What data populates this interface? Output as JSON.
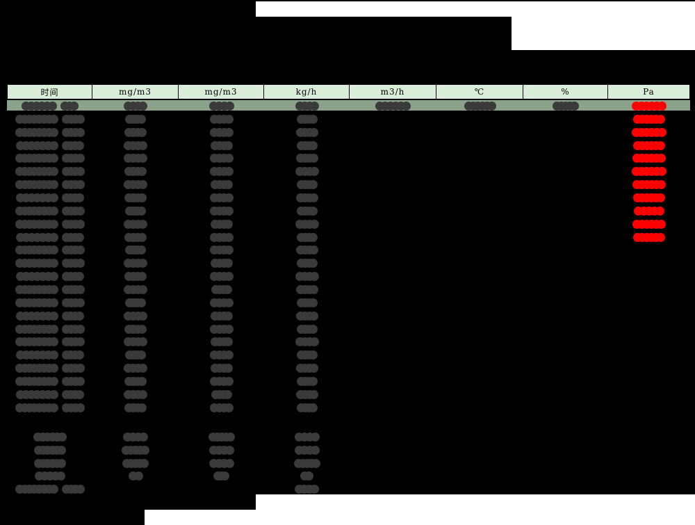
{
  "table": {
    "header": {
      "columns": [
        "时间",
        "mg/m3",
        "mg/m3",
        "kg/h",
        "m3/h",
        "℃",
        "%",
        "Pa"
      ]
    },
    "body_rows": [
      {
        "highlight": true,
        "cells": [
          [
            0,
            82
          ],
          [
            1,
            34
          ],
          [
            2,
            36
          ],
          [
            3,
            34
          ],
          [
            4,
            51
          ],
          [
            5,
            46
          ],
          [
            6,
            38
          ],
          [
            7,
            50,
            1
          ]
        ]
      },
      {
        "cells": [
          [
            0,
            100
          ],
          [
            1,
            30
          ],
          [
            2,
            34
          ],
          [
            3,
            30
          ],
          [
            7,
            46,
            1
          ]
        ]
      },
      {
        "cells": [
          [
            0,
            100
          ],
          [
            1,
            32
          ],
          [
            2,
            34
          ],
          [
            3,
            32
          ],
          [
            7,
            50,
            1
          ]
        ]
      },
      {
        "cells": [
          [
            0,
            98
          ],
          [
            1,
            34
          ],
          [
            2,
            32
          ],
          [
            3,
            30
          ],
          [
            7,
            46,
            1
          ]
        ]
      },
      {
        "cells": [
          [
            0,
            100
          ],
          [
            1,
            34
          ],
          [
            2,
            34
          ],
          [
            3,
            32
          ],
          [
            7,
            48,
            1
          ]
        ]
      },
      {
        "cells": [
          [
            0,
            100
          ],
          [
            1,
            32
          ],
          [
            2,
            34
          ],
          [
            3,
            34
          ],
          [
            7,
            50,
            1
          ]
        ]
      },
      {
        "cells": [
          [
            0,
            100
          ],
          [
            1,
            34
          ],
          [
            2,
            32
          ],
          [
            3,
            30
          ],
          [
            7,
            48,
            1
          ]
        ]
      },
      {
        "cells": [
          [
            0,
            98
          ],
          [
            1,
            32
          ],
          [
            2,
            34
          ],
          [
            3,
            32
          ],
          [
            7,
            46,
            1
          ]
        ]
      },
      {
        "cells": [
          [
            0,
            100
          ],
          [
            1,
            30
          ],
          [
            2,
            34
          ],
          [
            3,
            30
          ],
          [
            7,
            44,
            1
          ]
        ]
      },
      {
        "cells": [
          [
            0,
            100
          ],
          [
            1,
            34
          ],
          [
            2,
            32
          ],
          [
            3,
            34
          ],
          [
            7,
            48,
            1
          ]
        ]
      },
      {
        "cells": [
          [
            0,
            98
          ],
          [
            1,
            32
          ],
          [
            2,
            34
          ],
          [
            3,
            30
          ],
          [
            7,
            46,
            1
          ]
        ]
      },
      {
        "cells": [
          [
            0,
            100
          ],
          [
            1,
            30
          ],
          [
            2,
            34
          ],
          [
            3,
            32
          ]
        ]
      },
      {
        "cells": [
          [
            0,
            100
          ],
          [
            1,
            34
          ],
          [
            2,
            32
          ],
          [
            3,
            30
          ]
        ]
      },
      {
        "cells": [
          [
            0,
            98
          ],
          [
            1,
            32
          ],
          [
            2,
            34
          ],
          [
            3,
            34
          ]
        ]
      },
      {
        "cells": [
          [
            0,
            100
          ],
          [
            1,
            34
          ],
          [
            2,
            30
          ],
          [
            3,
            32
          ]
        ]
      },
      {
        "cells": [
          [
            0,
            100
          ],
          [
            1,
            30
          ],
          [
            2,
            34
          ],
          [
            3,
            30
          ]
        ]
      },
      {
        "cells": [
          [
            0,
            98
          ],
          [
            1,
            34
          ],
          [
            2,
            32
          ],
          [
            3,
            32
          ]
        ]
      },
      {
        "cells": [
          [
            0,
            100
          ],
          [
            1,
            32
          ],
          [
            2,
            34
          ],
          [
            3,
            30
          ]
        ]
      },
      {
        "cells": [
          [
            0,
            100
          ],
          [
            1,
            34
          ],
          [
            2,
            32
          ],
          [
            3,
            34
          ]
        ]
      },
      {
        "cells": [
          [
            0,
            98
          ],
          [
            1,
            30
          ],
          [
            2,
            34
          ],
          [
            3,
            30
          ]
        ]
      },
      {
        "cells": [
          [
            0,
            100
          ],
          [
            1,
            34
          ],
          [
            2,
            32
          ],
          [
            3,
            32
          ]
        ]
      },
      {
        "cells": [
          [
            0,
            100
          ],
          [
            1,
            32
          ],
          [
            2,
            34
          ],
          [
            3,
            30
          ]
        ]
      },
      {
        "cells": [
          [
            0,
            98
          ],
          [
            1,
            34
          ],
          [
            2,
            30
          ],
          [
            3,
            32
          ]
        ]
      },
      {
        "cells": [
          [
            0,
            100
          ],
          [
            1,
            32
          ],
          [
            2,
            34
          ],
          [
            3,
            30
          ]
        ]
      }
    ],
    "summary_rows": [
      {
        "cells": [
          [
            0,
            48
          ],
          [
            1,
            36
          ],
          [
            2,
            38
          ],
          [
            3,
            36
          ]
        ]
      },
      {
        "cells": [
          [
            0,
            46
          ],
          [
            1,
            40
          ],
          [
            2,
            36
          ],
          [
            3,
            36
          ]
        ]
      },
      {
        "cells": [
          [
            0,
            46
          ],
          [
            1,
            38
          ],
          [
            2,
            36
          ],
          [
            3,
            38
          ]
        ]
      },
      {
        "cells": [
          [
            0,
            44
          ],
          [
            1,
            21
          ],
          [
            2,
            23
          ],
          [
            3,
            19
          ]
        ]
      },
      {
        "long_label": true,
        "cells": [
          [
            0,
            100
          ],
          [
            3,
            35
          ]
        ]
      }
    ]
  },
  "colors": {
    "page_background": "#000000",
    "paper": "#ffffff",
    "header_cell_background": "#d9edd9",
    "first_row_background": "#8aa28a",
    "redacted_value": "#3a3a3a",
    "alert_value": "#ff0000"
  },
  "notes": {
    "red_value_rows": 11,
    "body_row_count": 24,
    "summary_row_count": 5
  }
}
